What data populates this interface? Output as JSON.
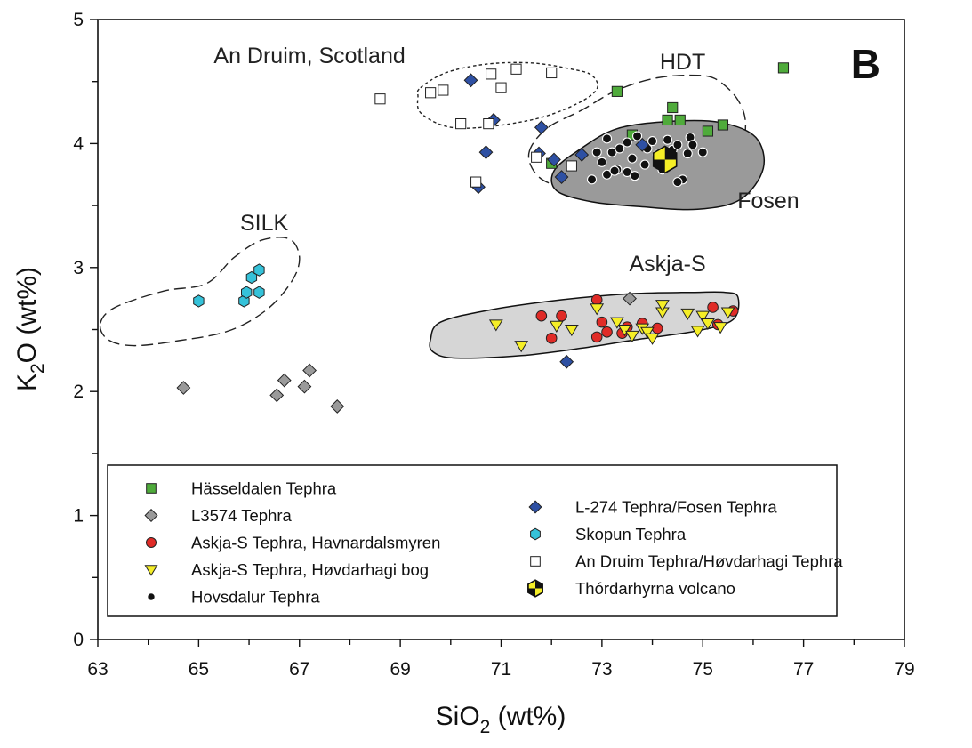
{
  "chart_data": {
    "type": "scatter",
    "panel_label": "B",
    "xlabel": {
      "main": "SiO",
      "sub": "2",
      "rest": " (wt%)"
    },
    "ylabel": {
      "main": "K",
      "sub": "2",
      "rest": "O (wt%)"
    },
    "xlim": [
      63,
      79
    ],
    "ylim": [
      0,
      5
    ],
    "xticks": [
      63,
      65,
      67,
      69,
      71,
      73,
      75,
      77,
      79
    ],
    "yticks": [
      0,
      1,
      2,
      3,
      4,
      5
    ],
    "grid": false,
    "legend_position": "bottom",
    "annotations": [
      {
        "id": "an-druim",
        "text": "An Druim, Scotland",
        "x": 67.2,
        "y": 4.65
      },
      {
        "id": "hdt",
        "text": "HDT",
        "x": 74.6,
        "y": 4.6
      },
      {
        "id": "silk",
        "text": "SILK",
        "x": 66.3,
        "y": 3.3
      },
      {
        "id": "fosen",
        "text": "Fosen",
        "x": 76.3,
        "y": 3.48
      },
      {
        "id": "askja-s",
        "text": "Askja-S",
        "x": 74.3,
        "y": 2.97
      }
    ],
    "regions": [
      {
        "id": "an-druim-envelope",
        "style": "dotted",
        "points": [
          [
            69.4,
            4.45
          ],
          [
            69.9,
            4.57
          ],
          [
            70.7,
            4.64
          ],
          [
            71.6,
            4.65
          ],
          [
            72.4,
            4.6
          ],
          [
            72.8,
            4.55
          ],
          [
            72.9,
            4.44
          ],
          [
            72.5,
            4.32
          ],
          [
            71.7,
            4.2
          ],
          [
            70.6,
            4.13
          ],
          [
            69.9,
            4.14
          ],
          [
            69.4,
            4.25
          ],
          [
            69.35,
            4.38
          ]
        ]
      },
      {
        "id": "hdt-envelope",
        "style": "dashed",
        "points": [
          [
            71.55,
            3.92
          ],
          [
            71.9,
            4.12
          ],
          [
            72.6,
            4.27
          ],
          [
            73.3,
            4.43
          ],
          [
            74.1,
            4.53
          ],
          [
            74.9,
            4.55
          ],
          [
            75.3,
            4.51
          ],
          [
            75.7,
            4.35
          ],
          [
            75.85,
            4.15
          ],
          [
            75.7,
            3.88
          ],
          [
            75.1,
            3.67
          ],
          [
            74.2,
            3.58
          ],
          [
            73.2,
            3.59
          ],
          [
            72.3,
            3.64
          ],
          [
            71.75,
            3.73
          ]
        ]
      },
      {
        "id": "fosen-field",
        "style": "filled-dark",
        "points": [
          [
            72.05,
            3.78
          ],
          [
            72.55,
            3.95
          ],
          [
            73.3,
            4.12
          ],
          [
            74.4,
            4.18
          ],
          [
            75.35,
            4.17
          ],
          [
            76.05,
            4.05
          ],
          [
            76.2,
            3.8
          ],
          [
            75.75,
            3.55
          ],
          [
            74.9,
            3.47
          ],
          [
            73.8,
            3.49
          ],
          [
            72.8,
            3.53
          ],
          [
            72.1,
            3.62
          ]
        ]
      },
      {
        "id": "silk-envelope",
        "style": "dashed",
        "points": [
          [
            63.05,
            2.55
          ],
          [
            63.35,
            2.68
          ],
          [
            64.3,
            2.81
          ],
          [
            65.15,
            2.87
          ],
          [
            65.7,
            3.08
          ],
          [
            66.25,
            3.22
          ],
          [
            66.8,
            3.23
          ],
          [
            67.0,
            3.08
          ],
          [
            66.85,
            2.89
          ],
          [
            66.35,
            2.66
          ],
          [
            65.6,
            2.49
          ],
          [
            64.6,
            2.41
          ],
          [
            63.7,
            2.37
          ],
          [
            63.2,
            2.42
          ]
        ]
      },
      {
        "id": "askja-s-field",
        "style": "filled-light",
        "points": [
          [
            69.6,
            2.42
          ],
          [
            69.8,
            2.56
          ],
          [
            70.8,
            2.66
          ],
          [
            72.2,
            2.74
          ],
          [
            73.6,
            2.79
          ],
          [
            74.8,
            2.8
          ],
          [
            75.45,
            2.8
          ],
          [
            75.7,
            2.76
          ],
          [
            75.6,
            2.58
          ],
          [
            74.9,
            2.49
          ],
          [
            73.7,
            2.42
          ],
          [
            72.6,
            2.35
          ],
          [
            71.4,
            2.29
          ],
          [
            70.1,
            2.27
          ],
          [
            69.65,
            2.32
          ]
        ]
      }
    ],
    "series": [
      {
        "name": "Hässeldalen Tephra",
        "marker": "square",
        "color": "#4fab3b",
        "points": [
          [
            72.0,
            3.84
          ],
          [
            73.3,
            4.42
          ],
          [
            73.6,
            4.07
          ],
          [
            74.3,
            4.19
          ],
          [
            74.4,
            4.29
          ],
          [
            74.55,
            4.19
          ],
          [
            75.1,
            4.1
          ],
          [
            75.4,
            4.15
          ],
          [
            76.6,
            4.61
          ]
        ]
      },
      {
        "name": "L3574 Tephra",
        "marker": "diamond",
        "color": "#9a9a9a",
        "points": [
          [
            64.7,
            2.03
          ],
          [
            66.55,
            1.97
          ],
          [
            66.7,
            2.09
          ],
          [
            67.1,
            2.04
          ],
          [
            67.2,
            2.17
          ],
          [
            67.75,
            1.88
          ],
          [
            73.55,
            2.75
          ]
        ]
      },
      {
        "name": "Askja-S Tephra, Havnardalsmyren",
        "marker": "circle",
        "color": "#e02b27",
        "points": [
          [
            71.8,
            2.61
          ],
          [
            72.0,
            2.43
          ],
          [
            72.2,
            2.61
          ],
          [
            72.9,
            2.74
          ],
          [
            72.9,
            2.44
          ],
          [
            73.0,
            2.56
          ],
          [
            73.1,
            2.48
          ],
          [
            73.4,
            2.47
          ],
          [
            73.5,
            2.52
          ],
          [
            73.8,
            2.55
          ],
          [
            74.1,
            2.51
          ],
          [
            75.2,
            2.68
          ],
          [
            75.3,
            2.54
          ],
          [
            75.6,
            2.65
          ]
        ]
      },
      {
        "name": "Askja-S Tephra, Høvdarhagi bog",
        "marker": "triangle-down",
        "color": "#f5ee27",
        "points": [
          [
            70.9,
            2.54
          ],
          [
            71.4,
            2.37
          ],
          [
            72.1,
            2.53
          ],
          [
            72.4,
            2.5
          ],
          [
            72.9,
            2.67
          ],
          [
            73.3,
            2.56
          ],
          [
            73.45,
            2.5
          ],
          [
            73.6,
            2.45
          ],
          [
            73.8,
            2.51
          ],
          [
            73.9,
            2.48
          ],
          [
            74.0,
            2.43
          ],
          [
            74.2,
            2.64
          ],
          [
            74.2,
            2.7
          ],
          [
            74.7,
            2.63
          ],
          [
            74.9,
            2.49
          ],
          [
            75.0,
            2.61
          ],
          [
            75.1,
            2.55
          ],
          [
            75.35,
            2.52
          ],
          [
            75.5,
            2.64
          ]
        ]
      },
      {
        "name": "Hovsdalur Tephra",
        "marker": "dot",
        "color": "#111111",
        "points": [
          [
            72.8,
            3.71
          ],
          [
            72.9,
            3.93
          ],
          [
            73.0,
            3.85
          ],
          [
            73.1,
            3.75
          ],
          [
            73.1,
            4.04
          ],
          [
            73.2,
            3.93
          ],
          [
            73.3,
            3.79
          ],
          [
            73.35,
            3.96
          ],
          [
            73.5,
            3.77
          ],
          [
            73.5,
            4.01
          ],
          [
            73.6,
            3.88
          ],
          [
            73.65,
            3.74
          ],
          [
            73.7,
            4.06
          ],
          [
            73.85,
            3.83
          ],
          [
            73.9,
            3.96
          ],
          [
            74.0,
            4.02
          ],
          [
            74.1,
            3.91
          ],
          [
            74.2,
            3.79
          ],
          [
            74.3,
            4.03
          ],
          [
            74.4,
            3.95
          ],
          [
            74.5,
            3.99
          ],
          [
            74.6,
            3.71
          ],
          [
            74.7,
            3.92
          ],
          [
            74.75,
            4.05
          ],
          [
            74.8,
            3.99
          ],
          [
            75.0,
            3.93
          ],
          [
            74.5,
            3.69
          ],
          [
            73.25,
            3.78
          ]
        ]
      },
      {
        "name": "L-274 Tephra/Fosen Tephra",
        "marker": "diamond",
        "color": "#2e50a3",
        "points": [
          [
            70.4,
            4.51
          ],
          [
            70.55,
            3.65
          ],
          [
            70.7,
            3.93
          ],
          [
            70.85,
            4.19
          ],
          [
            71.75,
            3.92
          ],
          [
            71.8,
            4.13
          ],
          [
            72.05,
            3.87
          ],
          [
            72.2,
            3.73
          ],
          [
            72.6,
            3.91
          ],
          [
            73.8,
            3.99
          ],
          [
            72.3,
            2.24
          ]
        ]
      },
      {
        "name": "Skopun Tephra",
        "marker": "hexagon",
        "color": "#35c2d9",
        "points": [
          [
            65.0,
            2.73
          ],
          [
            65.9,
            2.73
          ],
          [
            65.95,
            2.8
          ],
          [
            66.05,
            2.92
          ],
          [
            66.2,
            2.98
          ],
          [
            66.2,
            2.8
          ]
        ]
      },
      {
        "name": "An Druim Tephra/Høvdarhagi Tephra",
        "marker": "square-open",
        "color": "#ffffff",
        "points": [
          [
            68.6,
            4.36
          ],
          [
            69.6,
            4.41
          ],
          [
            69.85,
            4.43
          ],
          [
            70.2,
            4.16
          ],
          [
            70.5,
            3.69
          ],
          [
            70.75,
            4.16
          ],
          [
            70.8,
            4.56
          ],
          [
            71.0,
            4.45
          ],
          [
            71.3,
            4.6
          ],
          [
            71.7,
            3.89
          ],
          [
            72.0,
            4.57
          ],
          [
            72.4,
            3.82
          ]
        ]
      },
      {
        "name": "Thórdarhyrna volcano",
        "marker": "volcano",
        "color": "#f5ee27",
        "points": [
          [
            74.25,
            3.87
          ]
        ]
      }
    ],
    "legend": {
      "columns": [
        [
          "Hässeldalen Tephra",
          "L3574 Tephra",
          "Askja-S Tephra, Havnardalsmyren",
          "Askja-S Tephra, Høvdarhagi bog",
          "Hovsdalur Tephra"
        ],
        [
          "L-274 Tephra/Fosen Tephra",
          "Skopun Tephra",
          "An Druim Tephra/Høvdarhagi Tephra",
          "Thórdarhyrna volcano"
        ]
      ]
    }
  }
}
